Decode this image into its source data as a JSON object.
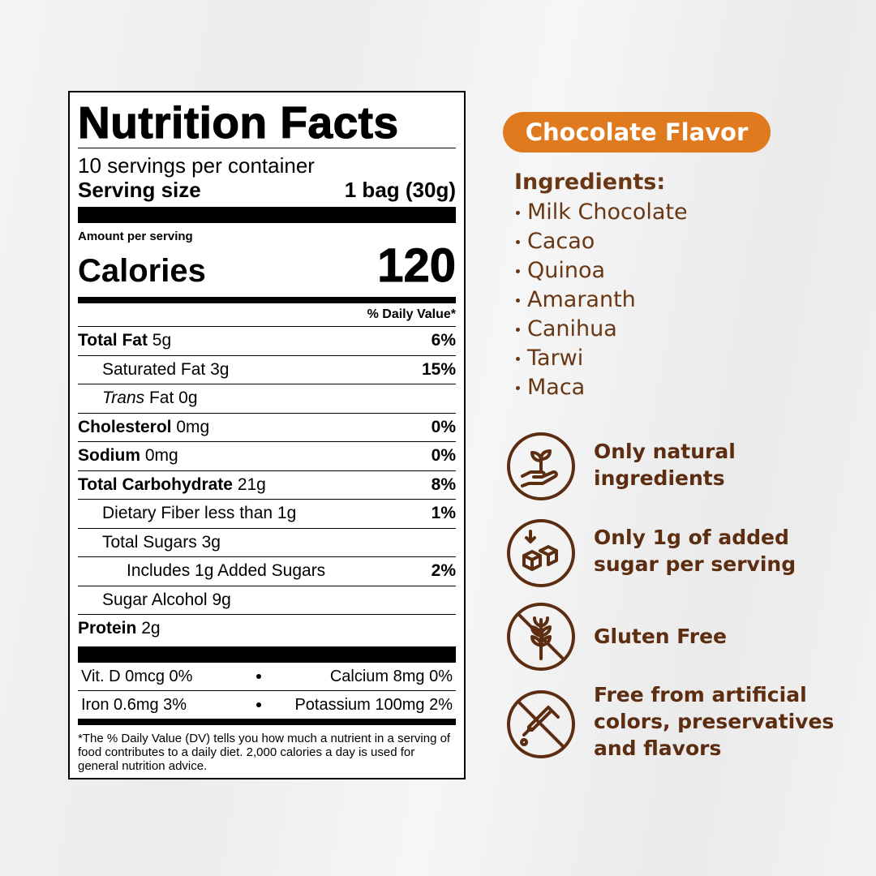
{
  "nutrition": {
    "title": "Nutrition Facts",
    "servings": "10 servings per container",
    "serving_size_label": "Serving size",
    "serving_size": "1 bag (30g)",
    "amount_per_serving": "Amount per serving",
    "calories_label": "Calories",
    "calories": "120",
    "daily_value_header": "% Daily Value*",
    "rows": [
      {
        "name": "Total Fat",
        "amount": "5g",
        "dv": "6%"
      },
      {
        "name": "Saturated Fat",
        "amount": "3g",
        "dv": "15%"
      },
      {
        "name_italic": "Trans",
        "name": "Fat",
        "amount": "0g"
      },
      {
        "name": "Cholesterol",
        "amount": "0mg",
        "dv": "0%"
      },
      {
        "name": "Sodium",
        "amount": "0mg",
        "dv": "0%"
      },
      {
        "name": "Total Carbohydrate",
        "amount": "21g",
        "dv": "8%"
      },
      {
        "name": "Dietary Fiber",
        "amount": "less than 1g",
        "dv": "1%"
      },
      {
        "name": "Total Sugars",
        "amount": "3g"
      },
      {
        "name": "Includes 1g Added Sugars",
        "dv": "2%"
      },
      {
        "name": "Sugar Alcohol",
        "amount": "9g"
      },
      {
        "name": "Protein",
        "amount": "2g"
      }
    ],
    "micronutrients": [
      [
        "Vit. D 0mcg 0%",
        "Calcium 8mg 0%"
      ],
      [
        "Iron 0.6mg 3%",
        "Potassium 100mg 2%"
      ]
    ],
    "footnote": "*The % Daily Value (DV) tells you how much a nutrient in a serving of food contributes to a daily diet. 2,000 calories a day is used for general nutrition advice."
  },
  "product": {
    "flavor": "Chocolate Flavor",
    "ingredients_title": "Ingredients:",
    "ingredients": [
      "Milk Chocolate",
      "Cacao",
      "Quinoa",
      "Amaranth",
      "Canihua",
      "Tarwi",
      "Maca"
    ],
    "features": [
      [
        "Only natural",
        "ingredients"
      ],
      [
        "Only 1g of added",
        "sugar per serving"
      ],
      [
        "Gluten Free"
      ],
      [
        "Free from artificial",
        "colors, preservatives",
        "and flavors"
      ]
    ]
  }
}
